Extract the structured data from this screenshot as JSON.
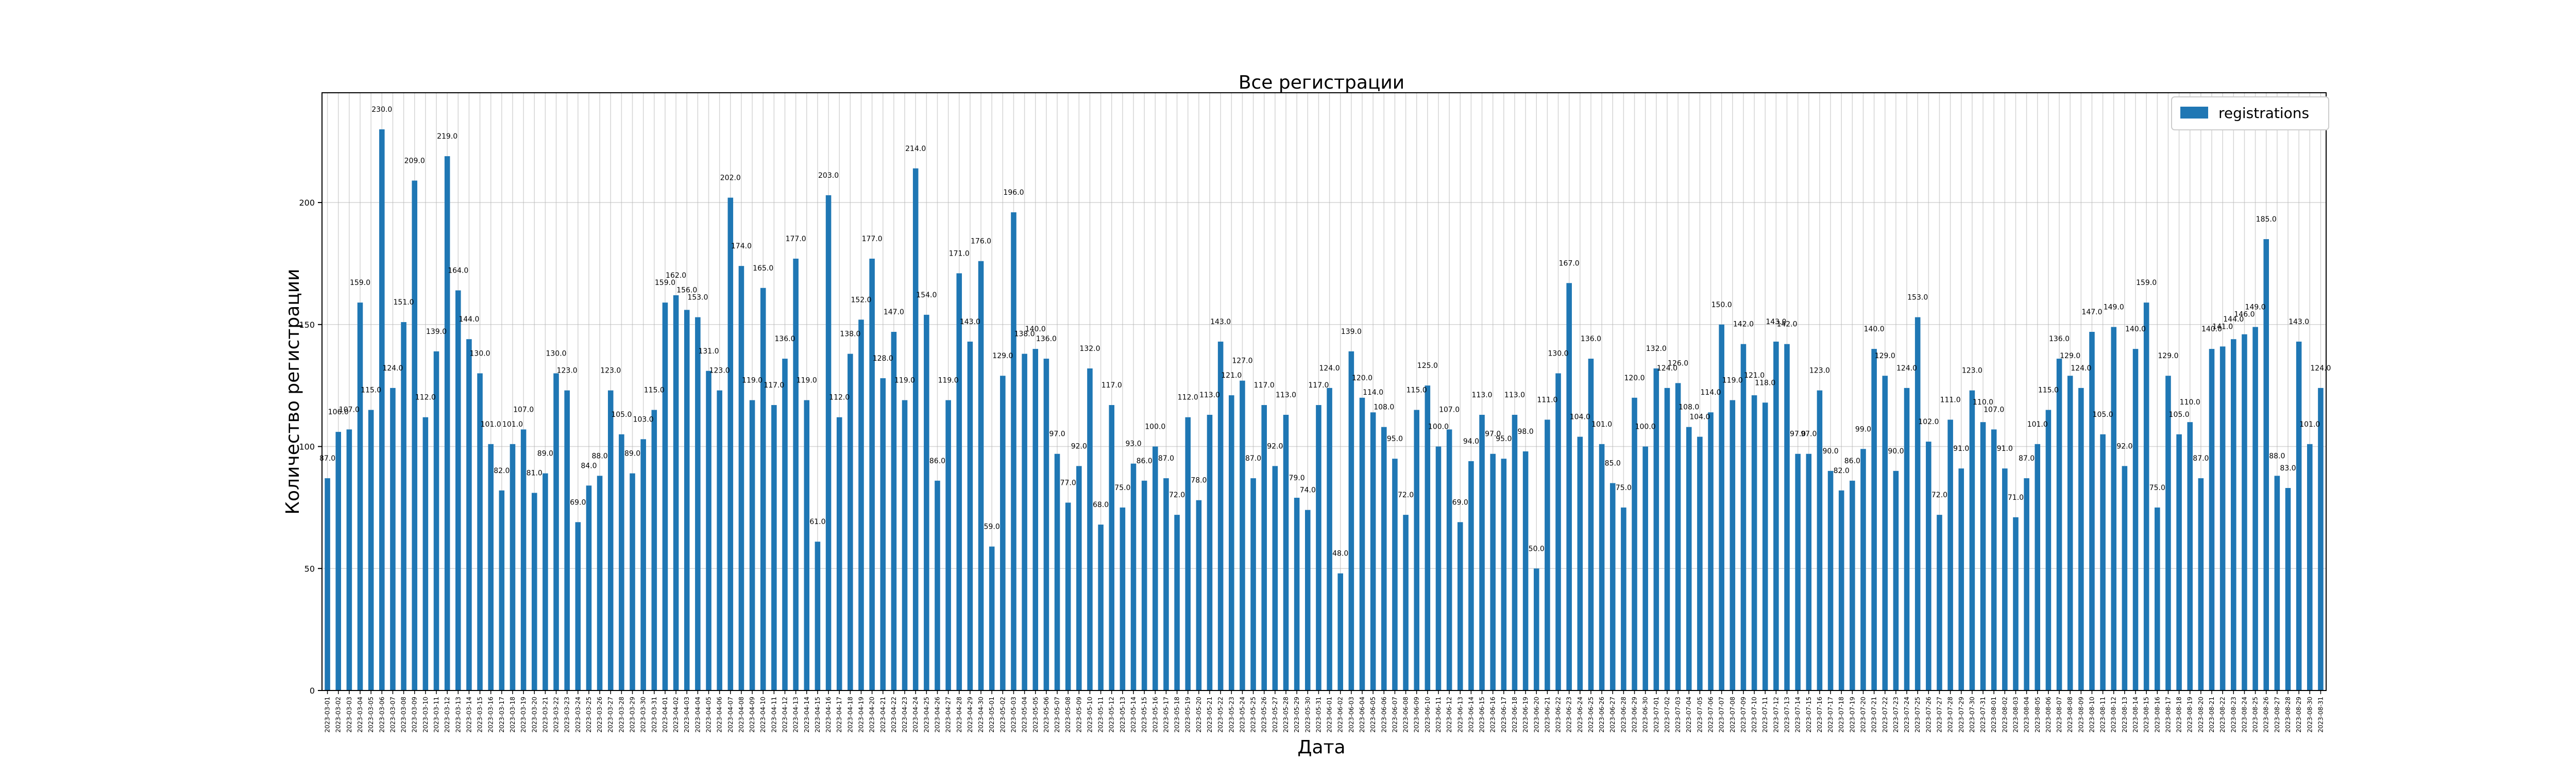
{
  "chart_data": {
    "type": "bar",
    "title": "Все регистрации",
    "xlabel": "Дата",
    "ylabel": "Количество регистрации",
    "ylim": [
      0,
      245
    ],
    "yticks": [
      0,
      50,
      100,
      150,
      200
    ],
    "grid": true,
    "legend_position": "top-right",
    "colors": {
      "bar": "#1f77b4",
      "grid": "#b0b0b0",
      "axis": "#000000"
    },
    "series": [
      {
        "name": "registrations",
        "values": [
          87,
          106,
          107,
          159,
          115,
          230,
          124,
          151,
          209,
          112,
          139,
          219,
          164,
          144,
          130,
          101,
          82,
          101,
          107,
          81,
          89,
          130,
          123,
          69,
          84,
          88,
          123,
          105,
          89,
          103,
          115,
          159,
          162,
          156,
          153,
          131,
          123,
          202,
          174,
          119,
          165,
          117,
          136,
          177,
          119,
          61,
          203,
          112,
          138,
          152,
          177,
          128,
          147,
          119,
          214,
          154,
          86,
          119,
          171,
          143,
          176,
          59,
          129,
          196,
          138,
          140,
          136,
          97,
          77,
          92,
          132,
          68,
          117,
          75,
          93,
          86,
          100,
          87,
          72,
          112,
          78,
          113,
          143,
          121,
          127,
          87,
          117,
          92,
          113,
          79,
          74,
          117,
          124,
          48,
          139,
          120,
          114,
          108,
          95,
          72,
          115,
          125,
          100,
          107,
          69,
          94,
          113,
          97,
          95,
          113,
          98,
          50,
          111,
          130,
          167,
          104,
          136,
          101,
          85,
          75,
          120,
          100,
          132,
          124,
          126,
          108,
          104,
          114,
          150,
          119,
          142,
          121,
          118,
          143,
          142,
          97,
          97,
          123,
          90,
          82,
          86,
          99,
          140,
          129,
          90,
          124,
          153,
          102,
          72,
          111,
          91,
          123,
          110,
          107,
          91,
          71,
          87,
          101,
          115,
          136,
          129,
          124,
          147,
          105,
          149,
          92,
          140,
          159,
          75,
          129,
          105,
          110,
          87,
          140,
          141,
          144,
          146,
          149,
          185,
          88,
          83,
          143,
          101,
          124
        ],
        "value_labels": [
          "87.0",
          "106.0",
          "107.0",
          "159.0",
          "115.0",
          "230.0",
          "124.0",
          "151.0",
          "209.0",
          "112.0",
          "139.0",
          "219.0",
          "164.0",
          "144.0",
          "130.0",
          "101.0",
          "82.0",
          "101.0",
          "107.0",
          "81.0",
          "89.0",
          "130.0",
          "123.0",
          "69.0",
          "84.0",
          "88.0",
          "123.0",
          "105.0",
          "89.0",
          "103.0",
          "115.0",
          "159.0",
          "162.0",
          "156.0",
          "153.0",
          "131.0",
          "123.0",
          "202.0",
          "174.0",
          "119.0",
          "165.0",
          "117.0",
          "136.0",
          "177.0",
          "119.0",
          "61.0",
          "203.0",
          "112.0",
          "138.0",
          "152.0",
          "177.0",
          "128.0",
          "147.0",
          "119.0",
          "214.0",
          "154.0",
          "86.0",
          "119.0",
          "171.0",
          "143.0",
          "176.0",
          "59.0",
          "129.0",
          "196.0",
          "138.0",
          "140.0",
          "136.0",
          "97.0",
          "77.0",
          "92.0",
          "132.0",
          "68.0",
          "117.0",
          "75.0",
          "93.0",
          "86.0",
          "100.0",
          "87.0",
          "72.0",
          "112.0",
          "78.0",
          "113.0",
          "143.0",
          "121.0",
          "127.0",
          "87.0",
          "117.0",
          "92.0",
          "113.0",
          "79.0",
          "74.0",
          "117.0",
          "124.0",
          "48.0",
          "139.0",
          "120.0",
          "114.0",
          "108.0",
          "95.0",
          "72.0",
          "115.0",
          "125.0",
          "100.0",
          "107.0",
          "69.0",
          "94.0",
          "113.0",
          "97.0",
          "95.0",
          "113.0",
          "98.0",
          "50.0",
          "111.0",
          "130.0",
          "167.0",
          "104.0",
          "136.0",
          "101.0",
          "85.0",
          "75.0",
          "120.0",
          "100.0",
          "132.0",
          "124.0",
          "126.0",
          "108.0",
          "104.0",
          "114.0",
          "150.0",
          "119.0",
          "142.0",
          "121.0",
          "118.0",
          "143.0",
          "142.0",
          "97.0",
          "97.0",
          "123.0",
          "90.0",
          "82.0",
          "86.0",
          "99.0",
          "140.0",
          "129.0",
          "90.0",
          "124.0",
          "153.0",
          "102.0",
          "72.0",
          "111.0",
          "91.0",
          "123.0",
          "110.0",
          "107.0",
          "91.0",
          "71.0",
          "87.0",
          "101.0",
          "115.0",
          "136.0",
          "129.0",
          "124.0",
          "147.0",
          "105.0",
          "149.0",
          "92.0",
          "140.0",
          "159.0",
          "75.0",
          "129.0",
          "105.0",
          "110.0",
          "87.0",
          "140.0",
          "141.0",
          "144.0",
          "146.0",
          "149.0",
          "185.0",
          "88.0",
          "83.0",
          "143.0",
          "101.0",
          "124.0"
        ]
      }
    ],
    "categories": [
      "2023-03-01",
      "2023-03-02",
      "2023-03-03",
      "2023-03-04",
      "2023-03-05",
      "2023-03-06",
      "2023-03-07",
      "2023-03-08",
      "2023-03-09",
      "2023-03-10",
      "2023-03-11",
      "2023-03-12",
      "2023-03-13",
      "2023-03-14",
      "2023-03-15",
      "2023-03-16",
      "2023-03-17",
      "2023-03-18",
      "2023-03-19",
      "2023-03-20",
      "2023-03-21",
      "2023-03-22",
      "2023-03-23",
      "2023-03-24",
      "2023-03-25",
      "2023-03-26",
      "2023-03-27",
      "2023-03-28",
      "2023-03-29",
      "2023-03-30",
      "2023-03-31",
      "2023-04-01",
      "2023-04-02",
      "2023-04-03",
      "2023-04-04",
      "2023-04-05",
      "2023-04-06",
      "2023-04-07",
      "2023-04-08",
      "2023-04-09",
      "2023-04-10",
      "2023-04-11",
      "2023-04-12",
      "2023-04-13",
      "2023-04-14",
      "2023-04-15",
      "2023-04-16",
      "2023-04-17",
      "2023-04-18",
      "2023-04-19",
      "2023-04-20",
      "2023-04-21",
      "2023-04-22",
      "2023-04-23",
      "2023-04-24",
      "2023-04-25",
      "2023-04-26",
      "2023-04-27",
      "2023-04-28",
      "2023-04-29",
      "2023-04-30",
      "2023-05-01",
      "2023-05-02",
      "2023-05-03",
      "2023-05-04",
      "2023-05-05",
      "2023-05-06",
      "2023-05-07",
      "2023-05-08",
      "2023-05-09",
      "2023-05-10",
      "2023-05-11",
      "2023-05-12",
      "2023-05-13",
      "2023-05-14",
      "2023-05-15",
      "2023-05-16",
      "2023-05-17",
      "2023-05-18",
      "2023-05-19",
      "2023-05-20",
      "2023-05-21",
      "2023-05-22",
      "2023-05-23",
      "2023-05-24",
      "2023-05-25",
      "2023-05-26",
      "2023-05-27",
      "2023-05-28",
      "2023-05-29",
      "2023-05-30",
      "2023-05-31",
      "2023-06-01",
      "2023-06-02",
      "2023-06-03",
      "2023-06-04",
      "2023-06-05",
      "2023-06-06",
      "2023-06-07",
      "2023-06-08",
      "2023-06-09",
      "2023-06-10",
      "2023-06-11",
      "2023-06-12",
      "2023-06-13",
      "2023-06-14",
      "2023-06-15",
      "2023-06-16",
      "2023-06-17",
      "2023-06-18",
      "2023-06-19",
      "2023-06-20",
      "2023-06-21",
      "2023-06-22",
      "2023-06-23",
      "2023-06-24",
      "2023-06-25",
      "2023-06-26",
      "2023-06-27",
      "2023-06-28",
      "2023-06-29",
      "2023-06-30",
      "2023-07-01",
      "2023-07-02",
      "2023-07-03",
      "2023-07-04",
      "2023-07-05",
      "2023-07-06",
      "2023-07-07",
      "2023-07-08",
      "2023-07-09",
      "2023-07-10",
      "2023-07-11",
      "2023-07-12",
      "2023-07-13",
      "2023-07-14",
      "2023-07-15",
      "2023-07-16",
      "2023-07-17",
      "2023-07-18",
      "2023-07-19",
      "2023-07-20",
      "2023-07-21",
      "2023-07-22",
      "2023-07-23",
      "2023-07-24",
      "2023-07-25",
      "2023-07-26",
      "2023-07-27",
      "2023-07-28",
      "2023-07-29",
      "2023-07-30",
      "2023-07-31",
      "2023-08-01",
      "2023-08-02",
      "2023-08-03",
      "2023-08-04",
      "2023-08-05",
      "2023-08-06",
      "2023-08-07",
      "2023-08-08",
      "2023-08-09",
      "2023-08-10",
      "2023-08-11",
      "2023-08-12",
      "2023-08-13",
      "2023-08-14",
      "2023-08-15",
      "2023-08-16",
      "2023-08-17",
      "2023-08-18",
      "2023-08-19",
      "2023-08-20",
      "2023-08-21",
      "2023-08-22",
      "2023-08-23",
      "2023-08-24",
      "2023-08-25",
      "2023-08-26",
      "2023-08-27",
      "2023-08-28",
      "2023-08-29",
      "2023-08-30",
      "2023-08-31"
    ]
  }
}
